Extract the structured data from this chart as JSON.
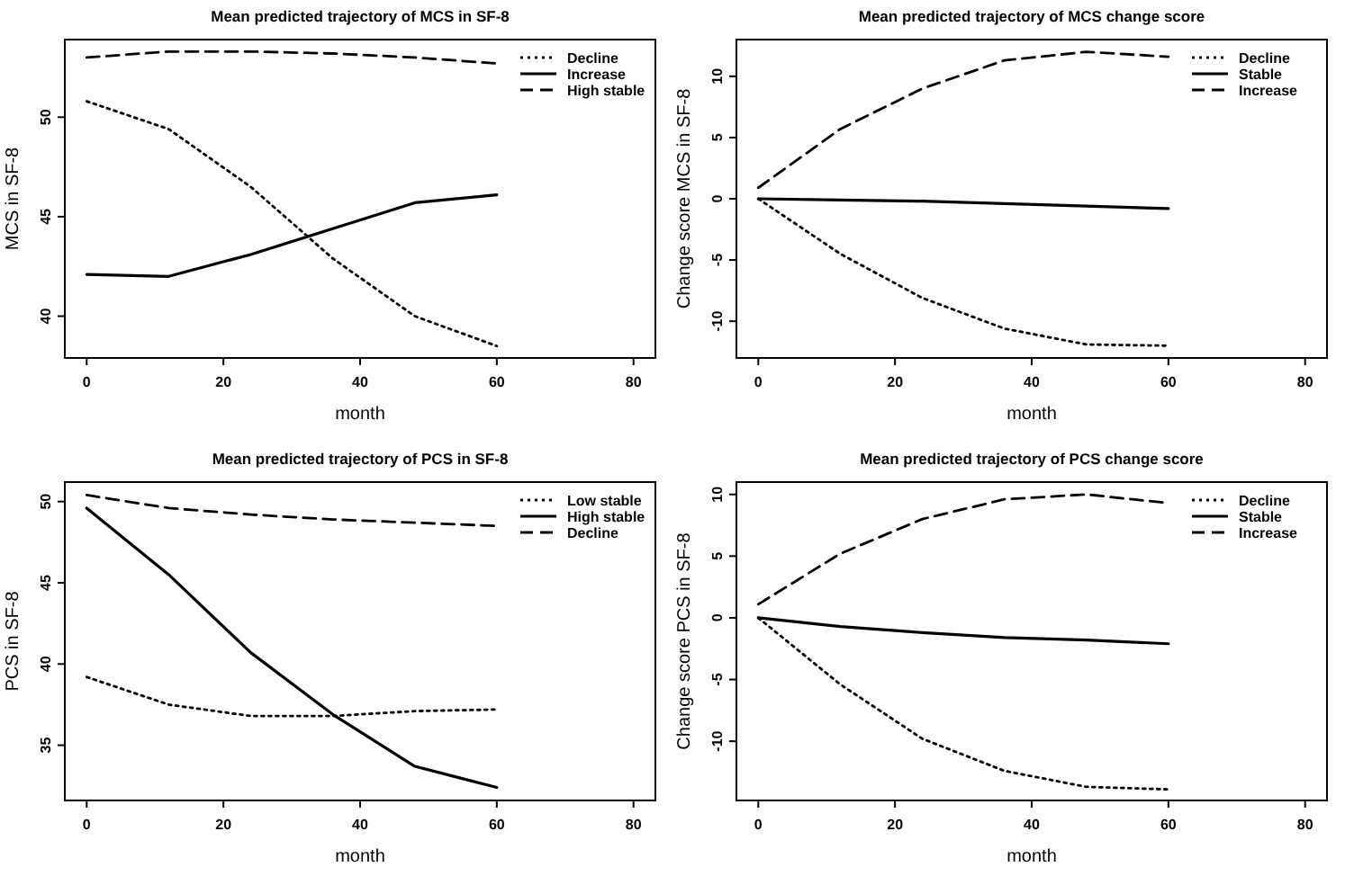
{
  "chart_data": [
    {
      "type": "line",
      "title": "Mean predicted trajectory of MCS in SF-8",
      "xlabel": "month",
      "ylabel": "MCS in SF-8",
      "x": [
        0,
        12,
        24,
        36,
        48,
        60
      ],
      "xlim": [
        -3.2,
        83.2
      ],
      "xticks": [
        0,
        20,
        40,
        60,
        80
      ],
      "ylim": [
        37.9,
        53.9
      ],
      "yticks": [
        40,
        45,
        50
      ],
      "legend": "top right",
      "series": [
        {
          "name": "Decline",
          "color": "#000000",
          "line_style": "dotted",
          "values": [
            50.8,
            49.4,
            46.5,
            42.9,
            40.0,
            38.5
          ]
        },
        {
          "name": "Increase",
          "color": "#000000",
          "line_style": "solid",
          "values": [
            42.1,
            42.0,
            43.1,
            44.4,
            45.7,
            46.1
          ]
        },
        {
          "name": "High stable",
          "color": "#000000",
          "line_style": "dashed",
          "values": [
            53.0,
            53.3,
            53.3,
            53.2,
            53.0,
            52.7
          ]
        }
      ]
    },
    {
      "type": "line",
      "title": "Mean predicted trajectory of MCS change score",
      "xlabel": "month",
      "ylabel": "Change score MCS in SF-8",
      "x": [
        0,
        12,
        24,
        36,
        48,
        60
      ],
      "xlim": [
        -3.2,
        83.2
      ],
      "xticks": [
        0,
        20,
        40,
        60,
        80
      ],
      "ylim": [
        -13,
        13
      ],
      "yticks": [
        -10,
        -5,
        0,
        5,
        10
      ],
      "legend": "top right",
      "series": [
        {
          "name": "Decline",
          "color": "#000000",
          "line_style": "dotted",
          "values": [
            0,
            -4.5,
            -8.1,
            -10.6,
            -11.9,
            -12.0
          ]
        },
        {
          "name": "Stable",
          "color": "#000000",
          "line_style": "solid",
          "values": [
            0,
            -0.1,
            -0.2,
            -0.4,
            -0.6,
            -0.8
          ]
        },
        {
          "name": "Increase",
          "color": "#000000",
          "line_style": "dashed",
          "values": [
            0.9,
            5.7,
            9.0,
            11.3,
            12.0,
            11.6
          ]
        }
      ]
    },
    {
      "type": "line",
      "title": "Mean predicted trajectory of PCS in SF-8",
      "xlabel": "month",
      "ylabel": "PCS in SF-8",
      "x": [
        0,
        12,
        24,
        36,
        48,
        60
      ],
      "xlim": [
        -3.2,
        83.2
      ],
      "xticks": [
        0,
        20,
        40,
        60,
        80
      ],
      "ylim": [
        31.6,
        51.2
      ],
      "yticks": [
        35,
        40,
        45,
        50
      ],
      "legend": "top right",
      "series": [
        {
          "name": "Low stable",
          "color": "#000000",
          "line_style": "dotted",
          "values": [
            39.2,
            37.5,
            36.8,
            36.8,
            37.1,
            37.2
          ]
        },
        {
          "name": "High stable",
          "color": "#000000",
          "line_style": "solid",
          "values": [
            49.6,
            45.5,
            40.7,
            36.9,
            33.7,
            32.4
          ]
        },
        {
          "name": "Decline",
          "color": "#000000",
          "line_style": "dashed",
          "values": [
            50.4,
            49.6,
            49.2,
            48.9,
            48.7,
            48.5
          ]
        }
      ]
    },
    {
      "type": "line",
      "title": "Mean predicted trajectory of PCS change score",
      "xlabel": "month",
      "ylabel": "Change score PCS in SF-8",
      "x": [
        0,
        12,
        24,
        36,
        48,
        60
      ],
      "xlim": [
        -3.2,
        83.2
      ],
      "xticks": [
        0,
        20,
        40,
        60,
        80
      ],
      "ylim": [
        -14.8,
        11
      ],
      "yticks": [
        -10,
        -5,
        0,
        5,
        10
      ],
      "legend": "top right",
      "series": [
        {
          "name": "Decline",
          "color": "#000000",
          "line_style": "dotted",
          "values": [
            0,
            -5.4,
            -9.8,
            -12.4,
            -13.7,
            -13.9
          ]
        },
        {
          "name": "Stable",
          "color": "#000000",
          "line_style": "solid",
          "values": [
            0,
            -0.7,
            -1.2,
            -1.6,
            -1.8,
            -2.1
          ]
        },
        {
          "name": "Increase",
          "color": "#000000",
          "line_style": "dashed",
          "values": [
            1.1,
            5.2,
            8.0,
            9.6,
            10.0,
            9.3
          ]
        }
      ]
    }
  ]
}
